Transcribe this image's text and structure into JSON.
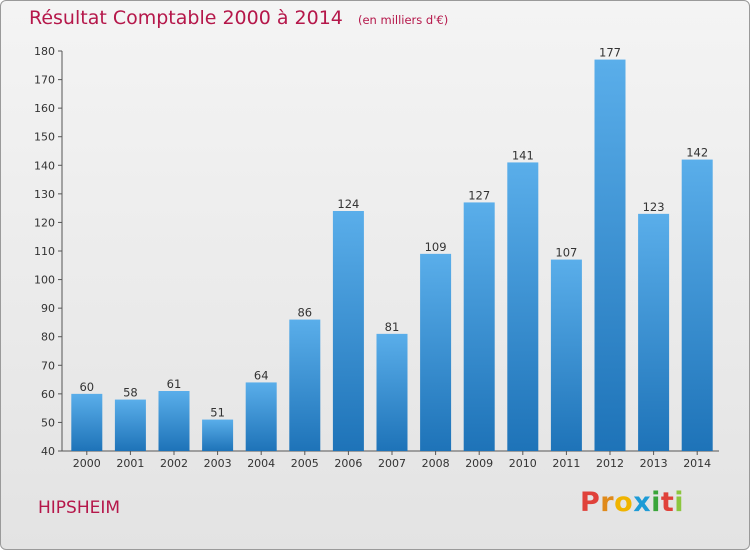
{
  "header": {
    "title": "Résultat Comptable 2000 à 2014",
    "unit_note": "(en milliers d'€)"
  },
  "footer": {
    "city": "HIPSHEIM",
    "logo_text": "Proxiti"
  },
  "colors": {
    "title": "#b5174a",
    "bar_top": "#5aaeea",
    "bar_bottom": "#1e73b8",
    "logo_letters": [
      "#e0413a",
      "#e08a1a",
      "#f0b400",
      "#1d9bd6",
      "#3aa53a",
      "#e0413a",
      "#8cc63e"
    ]
  },
  "chart_data": {
    "type": "bar",
    "categories": [
      "2000",
      "2001",
      "2002",
      "2003",
      "2004",
      "2005",
      "2006",
      "2007",
      "2008",
      "2009",
      "2010",
      "2011",
      "2012",
      "2013",
      "2014"
    ],
    "values": [
      60,
      58,
      61,
      51,
      64,
      86,
      124,
      81,
      109,
      127,
      141,
      107,
      177,
      123,
      142
    ],
    "ylim": [
      40,
      180
    ],
    "yticks": [
      40,
      50,
      60,
      70,
      80,
      90,
      100,
      110,
      120,
      130,
      140,
      150,
      160,
      170,
      180
    ],
    "data_labels": true,
    "grid": false,
    "legend": "none"
  }
}
